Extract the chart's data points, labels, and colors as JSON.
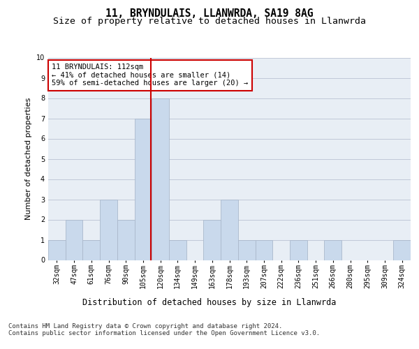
{
  "title1": "11, BRYNDULAIS, LLANWRDA, SA19 8AG",
  "title2": "Size of property relative to detached houses in Llanwrda",
  "xlabel": "Distribution of detached houses by size in Llanwrda",
  "ylabel": "Number of detached properties",
  "categories": [
    "32sqm",
    "47sqm",
    "61sqm",
    "76sqm",
    "90sqm",
    "105sqm",
    "120sqm",
    "134sqm",
    "149sqm",
    "163sqm",
    "178sqm",
    "193sqm",
    "207sqm",
    "222sqm",
    "236sqm",
    "251sqm",
    "266sqm",
    "280sqm",
    "295sqm",
    "309sqm",
    "324sqm"
  ],
  "values": [
    1,
    2,
    1,
    3,
    2,
    7,
    8,
    1,
    0,
    2,
    3,
    1,
    1,
    0,
    1,
    0,
    1,
    0,
    0,
    0,
    1
  ],
  "bar_color": "#c9d9ec",
  "bar_edgecolor": "#aab8cc",
  "vline_color": "#cc0000",
  "annotation_text": "11 BRYNDULAIS: 112sqm\n← 41% of detached houses are smaller (14)\n59% of semi-detached houses are larger (20) →",
  "annotation_box_color": "#ffffff",
  "annotation_box_edgecolor": "#cc0000",
  "ylim": [
    0,
    10
  ],
  "yticks": [
    0,
    1,
    2,
    3,
    4,
    5,
    6,
    7,
    8,
    9,
    10
  ],
  "grid_color": "#c0c8d8",
  "bg_color": "#e8eef5",
  "footnote": "Contains HM Land Registry data © Crown copyright and database right 2024.\nContains public sector information licensed under the Open Government Licence v3.0.",
  "title1_fontsize": 10.5,
  "title2_fontsize": 9.5,
  "xlabel_fontsize": 8.5,
  "ylabel_fontsize": 8,
  "tick_fontsize": 7,
  "annot_fontsize": 7.5,
  "footnote_fontsize": 6.5
}
